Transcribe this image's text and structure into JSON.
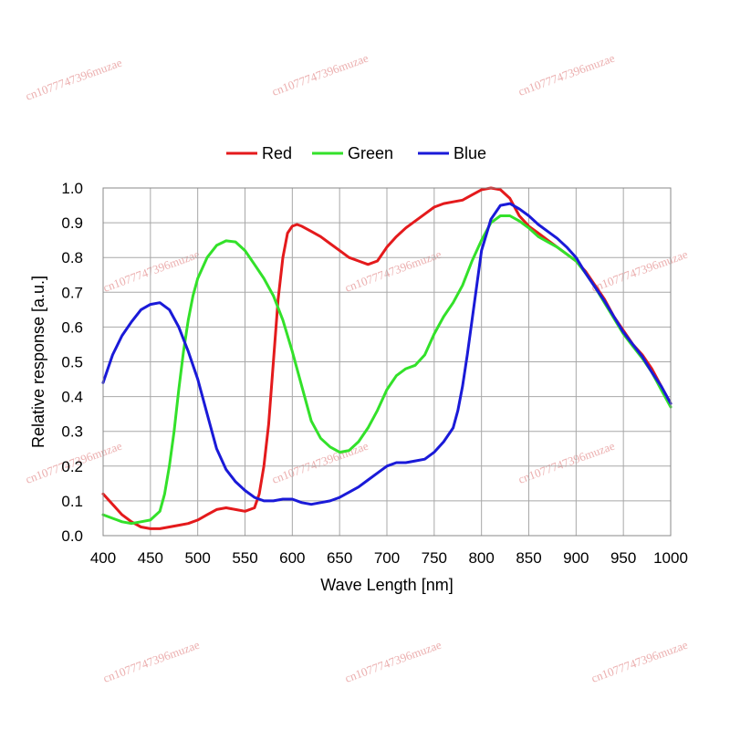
{
  "chart_data": {
    "type": "line",
    "title": "",
    "xlabel": "Wave Length [nm]",
    "ylabel": "Relative response [a.u.]",
    "xlim": [
      400,
      1000
    ],
    "ylim": [
      0,
      1.0
    ],
    "xticks": [
      "400",
      "450",
      "500",
      "550",
      "600",
      "650",
      "700",
      "750",
      "800",
      "850",
      "900",
      "950",
      "1000"
    ],
    "yticks": [
      "0.0",
      "0.1",
      "0.2",
      "0.3",
      "0.4",
      "0.5",
      "0.6",
      "0.7",
      "0.8",
      "0.9",
      "1.0"
    ],
    "grid": true,
    "legend_position": "top",
    "series": [
      {
        "name": "Red",
        "color": "#e41a1c",
        "points": [
          [
            400,
            0.12
          ],
          [
            410,
            0.09
          ],
          [
            420,
            0.06
          ],
          [
            430,
            0.04
          ],
          [
            440,
            0.025
          ],
          [
            450,
            0.02
          ],
          [
            460,
            0.02
          ],
          [
            470,
            0.025
          ],
          [
            480,
            0.03
          ],
          [
            490,
            0.035
          ],
          [
            500,
            0.045
          ],
          [
            510,
            0.06
          ],
          [
            520,
            0.075
          ],
          [
            530,
            0.08
          ],
          [
            540,
            0.075
          ],
          [
            550,
            0.07
          ],
          [
            560,
            0.08
          ],
          [
            565,
            0.12
          ],
          [
            570,
            0.2
          ],
          [
            575,
            0.32
          ],
          [
            580,
            0.5
          ],
          [
            585,
            0.68
          ],
          [
            590,
            0.8
          ],
          [
            595,
            0.87
          ],
          [
            600,
            0.89
          ],
          [
            605,
            0.895
          ],
          [
            610,
            0.89
          ],
          [
            620,
            0.875
          ],
          [
            630,
            0.86
          ],
          [
            640,
            0.84
          ],
          [
            650,
            0.82
          ],
          [
            660,
            0.8
          ],
          [
            670,
            0.79
          ],
          [
            680,
            0.78
          ],
          [
            690,
            0.79
          ],
          [
            700,
            0.83
          ],
          [
            710,
            0.86
          ],
          [
            720,
            0.885
          ],
          [
            730,
            0.905
          ],
          [
            740,
            0.925
          ],
          [
            750,
            0.945
          ],
          [
            760,
            0.955
          ],
          [
            770,
            0.96
          ],
          [
            780,
            0.965
          ],
          [
            790,
            0.98
          ],
          [
            800,
            0.995
          ],
          [
            810,
            1.0
          ],
          [
            820,
            0.995
          ],
          [
            830,
            0.97
          ],
          [
            840,
            0.92
          ],
          [
            850,
            0.89
          ],
          [
            860,
            0.87
          ],
          [
            870,
            0.85
          ],
          [
            880,
            0.83
          ],
          [
            890,
            0.81
          ],
          [
            900,
            0.79
          ],
          [
            910,
            0.76
          ],
          [
            920,
            0.72
          ],
          [
            930,
            0.68
          ],
          [
            940,
            0.63
          ],
          [
            950,
            0.59
          ],
          [
            960,
            0.55
          ],
          [
            970,
            0.52
          ],
          [
            980,
            0.48
          ],
          [
            990,
            0.43
          ],
          [
            1000,
            0.38
          ]
        ]
      },
      {
        "name": "Green",
        "color": "#33e12a",
        "points": [
          [
            400,
            0.06
          ],
          [
            410,
            0.05
          ],
          [
            420,
            0.04
          ],
          [
            430,
            0.035
          ],
          [
            440,
            0.04
          ],
          [
            450,
            0.045
          ],
          [
            460,
            0.07
          ],
          [
            465,
            0.12
          ],
          [
            470,
            0.2
          ],
          [
            475,
            0.3
          ],
          [
            480,
            0.42
          ],
          [
            485,
            0.53
          ],
          [
            490,
            0.62
          ],
          [
            495,
            0.69
          ],
          [
            500,
            0.74
          ],
          [
            510,
            0.8
          ],
          [
            520,
            0.835
          ],
          [
            530,
            0.848
          ],
          [
            540,
            0.845
          ],
          [
            550,
            0.82
          ],
          [
            560,
            0.78
          ],
          [
            570,
            0.74
          ],
          [
            580,
            0.69
          ],
          [
            590,
            0.62
          ],
          [
            600,
            0.53
          ],
          [
            610,
            0.43
          ],
          [
            620,
            0.33
          ],
          [
            630,
            0.28
          ],
          [
            640,
            0.255
          ],
          [
            650,
            0.24
          ],
          [
            660,
            0.245
          ],
          [
            670,
            0.27
          ],
          [
            680,
            0.31
          ],
          [
            690,
            0.36
          ],
          [
            700,
            0.42
          ],
          [
            710,
            0.46
          ],
          [
            720,
            0.48
          ],
          [
            730,
            0.49
          ],
          [
            740,
            0.52
          ],
          [
            750,
            0.58
          ],
          [
            760,
            0.63
          ],
          [
            770,
            0.67
          ],
          [
            780,
            0.72
          ],
          [
            790,
            0.79
          ],
          [
            800,
            0.85
          ],
          [
            810,
            0.9
          ],
          [
            820,
            0.92
          ],
          [
            830,
            0.92
          ],
          [
            840,
            0.905
          ],
          [
            850,
            0.885
          ],
          [
            860,
            0.86
          ],
          [
            870,
            0.845
          ],
          [
            880,
            0.83
          ],
          [
            890,
            0.81
          ],
          [
            900,
            0.79
          ],
          [
            910,
            0.755
          ],
          [
            920,
            0.715
          ],
          [
            930,
            0.67
          ],
          [
            940,
            0.625
          ],
          [
            950,
            0.58
          ],
          [
            960,
            0.545
          ],
          [
            970,
            0.51
          ],
          [
            980,
            0.47
          ],
          [
            990,
            0.42
          ],
          [
            1000,
            0.37
          ]
        ]
      },
      {
        "name": "Blue",
        "color": "#1a1ad8",
        "points": [
          [
            400,
            0.44
          ],
          [
            410,
            0.52
          ],
          [
            420,
            0.575
          ],
          [
            430,
            0.615
          ],
          [
            440,
            0.65
          ],
          [
            450,
            0.665
          ],
          [
            460,
            0.67
          ],
          [
            470,
            0.65
          ],
          [
            480,
            0.6
          ],
          [
            490,
            0.53
          ],
          [
            500,
            0.45
          ],
          [
            510,
            0.35
          ],
          [
            520,
            0.25
          ],
          [
            530,
            0.19
          ],
          [
            540,
            0.155
          ],
          [
            550,
            0.13
          ],
          [
            560,
            0.11
          ],
          [
            570,
            0.1
          ],
          [
            580,
            0.1
          ],
          [
            590,
            0.105
          ],
          [
            600,
            0.105
          ],
          [
            610,
            0.095
          ],
          [
            620,
            0.09
          ],
          [
            630,
            0.095
          ],
          [
            640,
            0.1
          ],
          [
            650,
            0.11
          ],
          [
            660,
            0.125
          ],
          [
            670,
            0.14
          ],
          [
            680,
            0.16
          ],
          [
            690,
            0.18
          ],
          [
            700,
            0.2
          ],
          [
            710,
            0.21
          ],
          [
            720,
            0.21
          ],
          [
            730,
            0.215
          ],
          [
            740,
            0.22
          ],
          [
            750,
            0.24
          ],
          [
            760,
            0.27
          ],
          [
            770,
            0.31
          ],
          [
            775,
            0.36
          ],
          [
            780,
            0.43
          ],
          [
            785,
            0.52
          ],
          [
            790,
            0.62
          ],
          [
            795,
            0.72
          ],
          [
            800,
            0.82
          ],
          [
            810,
            0.91
          ],
          [
            820,
            0.95
          ],
          [
            830,
            0.955
          ],
          [
            840,
            0.94
          ],
          [
            850,
            0.92
          ],
          [
            860,
            0.895
          ],
          [
            870,
            0.875
          ],
          [
            880,
            0.855
          ],
          [
            890,
            0.83
          ],
          [
            900,
            0.8
          ],
          [
            910,
            0.755
          ],
          [
            920,
            0.715
          ],
          [
            930,
            0.675
          ],
          [
            940,
            0.63
          ],
          [
            950,
            0.585
          ],
          [
            960,
            0.55
          ],
          [
            970,
            0.515
          ],
          [
            980,
            0.47
          ],
          [
            990,
            0.43
          ],
          [
            1000,
            0.38
          ]
        ]
      }
    ]
  },
  "watermark": "cn1077747396muzae"
}
